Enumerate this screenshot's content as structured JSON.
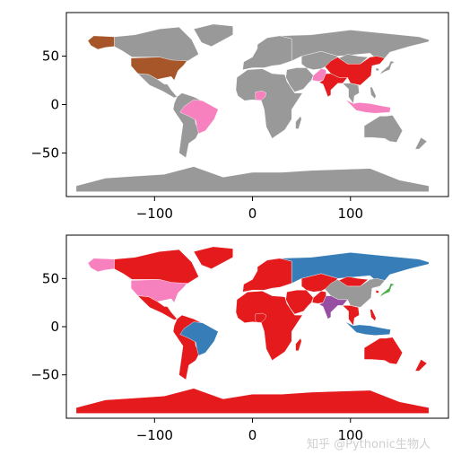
{
  "chart_data": [
    {
      "type": "choropleth-map",
      "projection": "plate-carree",
      "xlim": [
        -190,
        200
      ],
      "ylim": [
        -95,
        95
      ],
      "xticks": [
        -100,
        0,
        100
      ],
      "yticks": [
        -50,
        0,
        50
      ],
      "xtick_labels": [
        "−100",
        "0",
        "100"
      ],
      "ytick_labels": [
        "−50",
        "0",
        "50"
      ],
      "grid": false,
      "default_color": "#999999",
      "highlighted": [
        {
          "region": "United States",
          "color": "#a65628"
        },
        {
          "region": "Alaska",
          "color": "#a65628"
        },
        {
          "region": "Brazil",
          "color": "#f781bf"
        },
        {
          "region": "Nigeria",
          "color": "#f781bf"
        },
        {
          "region": "Indonesia",
          "color": "#f781bf"
        },
        {
          "region": "Pakistan",
          "color": "#f781bf"
        },
        {
          "region": "China",
          "color": "#e41a1c"
        },
        {
          "region": "India",
          "color": "#e41a1c"
        }
      ]
    },
    {
      "type": "choropleth-map",
      "projection": "plate-carree",
      "xlim": [
        -190,
        200
      ],
      "ylim": [
        -95,
        95
      ],
      "xticks": [
        -100,
        0,
        100
      ],
      "yticks": [
        -50,
        0,
        50
      ],
      "xtick_labels": [
        "−100",
        "0",
        "100"
      ],
      "ytick_labels": [
        "−50",
        "0",
        "50"
      ],
      "grid": false,
      "default_color": "#e41a1c",
      "highlighted": [
        {
          "region": "United States",
          "color": "#f781bf"
        },
        {
          "region": "Alaska",
          "color": "#f781bf"
        },
        {
          "region": "Brazil",
          "color": "#377eb8"
        },
        {
          "region": "Russia",
          "color": "#377eb8"
        },
        {
          "region": "Indonesia",
          "color": "#377eb8"
        },
        {
          "region": "China",
          "color": "#999999"
        },
        {
          "region": "India",
          "color": "#984ea3"
        },
        {
          "region": "Japan",
          "color": "#4daf4a"
        }
      ]
    }
  ],
  "watermark": "知乎 @Pythonic生物人"
}
